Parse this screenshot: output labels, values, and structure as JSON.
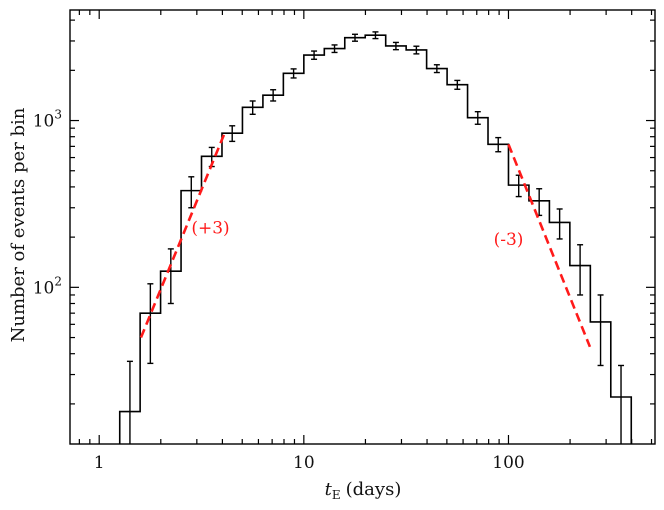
{
  "chart_data": {
    "type": "histogram",
    "x_scale": "log",
    "y_scale": "log",
    "xlim": [
      0.72,
      520
    ],
    "ylim": [
      11.5,
      4600
    ],
    "xlabel_main": "t",
    "xlabel_sub": "E",
    "xlabel_units": "(days)",
    "ylabel": "Number of events per bin",
    "x_ticks": [
      {
        "value": 1,
        "label": "1"
      },
      {
        "value": 10,
        "label": "10"
      },
      {
        "value": 100,
        "label": "100"
      }
    ],
    "y_ticks": [
      {
        "value": 100,
        "base": "10",
        "exp": "2"
      },
      {
        "value": 1000,
        "base": "10",
        "exp": "3"
      }
    ],
    "bins": [
      {
        "left": 1.26,
        "right": 1.585,
        "value": 18,
        "error": 18
      },
      {
        "left": 1.585,
        "right": 1.995,
        "value": 70,
        "error": 35
      },
      {
        "left": 1.995,
        "right": 2.512,
        "value": 125,
        "error": 45
      },
      {
        "left": 2.512,
        "right": 3.162,
        "value": 380,
        "error": 80
      },
      {
        "left": 3.162,
        "right": 3.981,
        "value": 610,
        "error": 80
      },
      {
        "left": 3.981,
        "right": 5.012,
        "value": 840,
        "error": 90
      },
      {
        "left": 5.012,
        "right": 6.31,
        "value": 1200,
        "error": 110
      },
      {
        "left": 6.31,
        "right": 7.943,
        "value": 1420,
        "error": 110
      },
      {
        "left": 7.943,
        "right": 10.0,
        "value": 1920,
        "error": 120
      },
      {
        "left": 10.0,
        "right": 12.59,
        "value": 2470,
        "error": 140
      },
      {
        "left": 12.59,
        "right": 15.85,
        "value": 2700,
        "error": 140
      },
      {
        "left": 15.85,
        "right": 19.95,
        "value": 3140,
        "error": 150
      },
      {
        "left": 19.95,
        "right": 25.12,
        "value": 3250,
        "error": 150
      },
      {
        "left": 25.12,
        "right": 31.62,
        "value": 2800,
        "error": 140
      },
      {
        "left": 31.62,
        "right": 39.81,
        "value": 2650,
        "error": 140
      },
      {
        "left": 39.81,
        "right": 50.12,
        "value": 2050,
        "error": 110
      },
      {
        "left": 50.12,
        "right": 63.1,
        "value": 1640,
        "error": 100
      },
      {
        "left": 63.1,
        "right": 79.43,
        "value": 1040,
        "error": 90
      },
      {
        "left": 79.43,
        "right": 100.0,
        "value": 720,
        "error": 70
      },
      {
        "left": 100.0,
        "right": 125.9,
        "value": 410,
        "error": 60
      },
      {
        "left": 125.9,
        "right": 158.5,
        "value": 330,
        "error": 60
      },
      {
        "left": 158.5,
        "right": 199.5,
        "value": 245,
        "error": 50
      },
      {
        "left": 199.5,
        "right": 251.2,
        "value": 135,
        "error": 45
      },
      {
        "left": 251.2,
        "right": 316.2,
        "value": 62,
        "error": 28
      },
      {
        "left": 316.2,
        "right": 398.1,
        "value": 22,
        "error": 12
      }
    ],
    "fit_lines": [
      {
        "name": "rising slope",
        "x": [
          1.6,
          4.1
        ],
        "y": [
          50,
          840
        ],
        "label": "(+3)",
        "label_at": [
          3.5,
          210
        ]
      },
      {
        "name": "falling slope",
        "x": [
          100,
          250
        ],
        "y": [
          720,
          44
        ],
        "label": "(-3)",
        "label_at": [
          100,
          180
        ]
      }
    ],
    "colors": {
      "histogram": "#000000",
      "fit": "#ff1a1a"
    }
  }
}
